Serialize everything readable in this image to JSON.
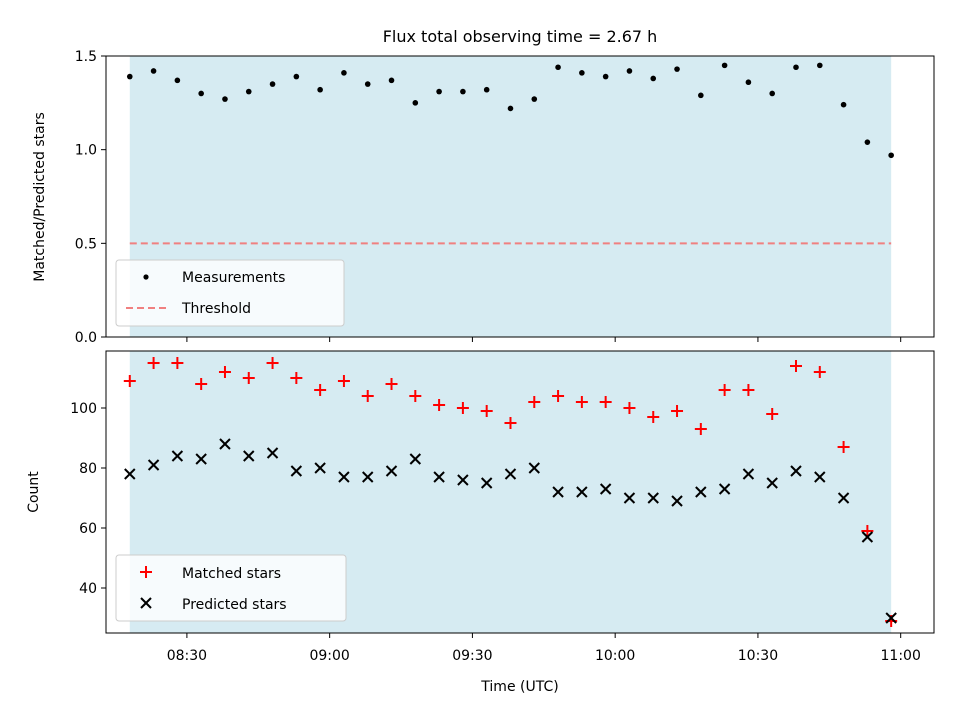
{
  "chart_data": [
    {
      "type": "scatter",
      "title": "Flux total observing time = 2.67 h",
      "xlabel": "",
      "ylabel": "Matched/Predicted stars",
      "xlim": [
        "08:13",
        "11:07"
      ],
      "ylim": [
        0,
        1.5
      ],
      "yticks": [
        0.0,
        0.5,
        1.0,
        1.5
      ],
      "ytick_labels": [
        "0.0",
        "0.5",
        "1.0",
        "1.5"
      ],
      "shaded_span": [
        "08:18",
        "10:58"
      ],
      "shaded_color": "#add8e6",
      "threshold": 0.5,
      "legend_position": "lower-left",
      "series": [
        {
          "name": "Measurements",
          "color": "#000000",
          "marker": "dot",
          "x": [
            "08:18",
            "08:23",
            "08:28",
            "08:33",
            "08:38",
            "08:43",
            "08:48",
            "08:53",
            "08:58",
            "09:03",
            "09:08",
            "09:13",
            "09:18",
            "09:23",
            "09:28",
            "09:33",
            "09:38",
            "09:43",
            "09:48",
            "09:53",
            "09:58",
            "10:03",
            "10:08",
            "10:13",
            "10:18",
            "10:23",
            "10:28",
            "10:33",
            "10:38",
            "10:43",
            "10:48",
            "10:53",
            "10:58"
          ],
          "y": [
            1.39,
            1.42,
            1.37,
            1.3,
            1.27,
            1.31,
            1.35,
            1.39,
            1.32,
            1.41,
            1.35,
            1.37,
            1.25,
            1.31,
            1.31,
            1.32,
            1.22,
            1.27,
            1.44,
            1.41,
            1.39,
            1.42,
            1.38,
            1.43,
            1.29,
            1.45,
            1.36,
            1.3,
            1.44,
            1.45,
            1.24,
            1.04,
            0.97
          ]
        },
        {
          "name": "Threshold",
          "color": "#f08080",
          "style": "dashed",
          "x": [
            "08:18",
            "10:58"
          ],
          "y": [
            0.5,
            0.5
          ]
        }
      ]
    },
    {
      "type": "scatter",
      "title": "",
      "xlabel": "Time (UTC)",
      "ylabel": "Count",
      "xlim": [
        "08:13",
        "11:07"
      ],
      "ylim": [
        25,
        119
      ],
      "yticks": [
        40,
        60,
        80,
        100
      ],
      "ytick_labels": [
        "40",
        "60",
        "80",
        "100"
      ],
      "xticks": [
        "08:30",
        "09:00",
        "09:30",
        "10:00",
        "10:30",
        "11:00"
      ],
      "xtick_labels": [
        "08:30",
        "09:00",
        "09:30",
        "10:00",
        "10:30",
        "11:00"
      ],
      "shaded_span": [
        "08:18",
        "10:58"
      ],
      "shaded_color": "#add8e6",
      "legend_position": "lower-left",
      "series": [
        {
          "name": "Matched stars",
          "color": "#ff0000",
          "marker": "plus",
          "x": [
            "08:18",
            "08:23",
            "08:28",
            "08:33",
            "08:38",
            "08:43",
            "08:48",
            "08:53",
            "08:58",
            "09:03",
            "09:08",
            "09:13",
            "09:18",
            "09:23",
            "09:28",
            "09:33",
            "09:38",
            "09:43",
            "09:48",
            "09:53",
            "09:58",
            "10:03",
            "10:08",
            "10:13",
            "10:18",
            "10:23",
            "10:28",
            "10:33",
            "10:38",
            "10:43",
            "10:48",
            "10:53",
            "10:58"
          ],
          "y": [
            109,
            115,
            115,
            108,
            112,
            110,
            115,
            110,
            106,
            109,
            104,
            108,
            104,
            101,
            100,
            99,
            95,
            102,
            104,
            102,
            102,
            100,
            97,
            99,
            93,
            106,
            106,
            98,
            114,
            112,
            87,
            59,
            29
          ]
        },
        {
          "name": "Predicted stars",
          "color": "#000000",
          "marker": "x",
          "x": [
            "08:18",
            "08:23",
            "08:28",
            "08:33",
            "08:38",
            "08:43",
            "08:48",
            "08:53",
            "08:58",
            "09:03",
            "09:08",
            "09:13",
            "09:18",
            "09:23",
            "09:28",
            "09:33",
            "09:38",
            "09:43",
            "09:48",
            "09:53",
            "09:58",
            "10:03",
            "10:08",
            "10:13",
            "10:18",
            "10:23",
            "10:28",
            "10:33",
            "10:38",
            "10:43",
            "10:48",
            "10:53",
            "10:58"
          ],
          "y": [
            78,
            81,
            84,
            83,
            88,
            84,
            85,
            79,
            80,
            77,
            77,
            79,
            83,
            77,
            76,
            75,
            78,
            80,
            72,
            72,
            73,
            70,
            70,
            69,
            72,
            73,
            78,
            75,
            79,
            77,
            70,
            57,
            30
          ]
        }
      ]
    }
  ]
}
